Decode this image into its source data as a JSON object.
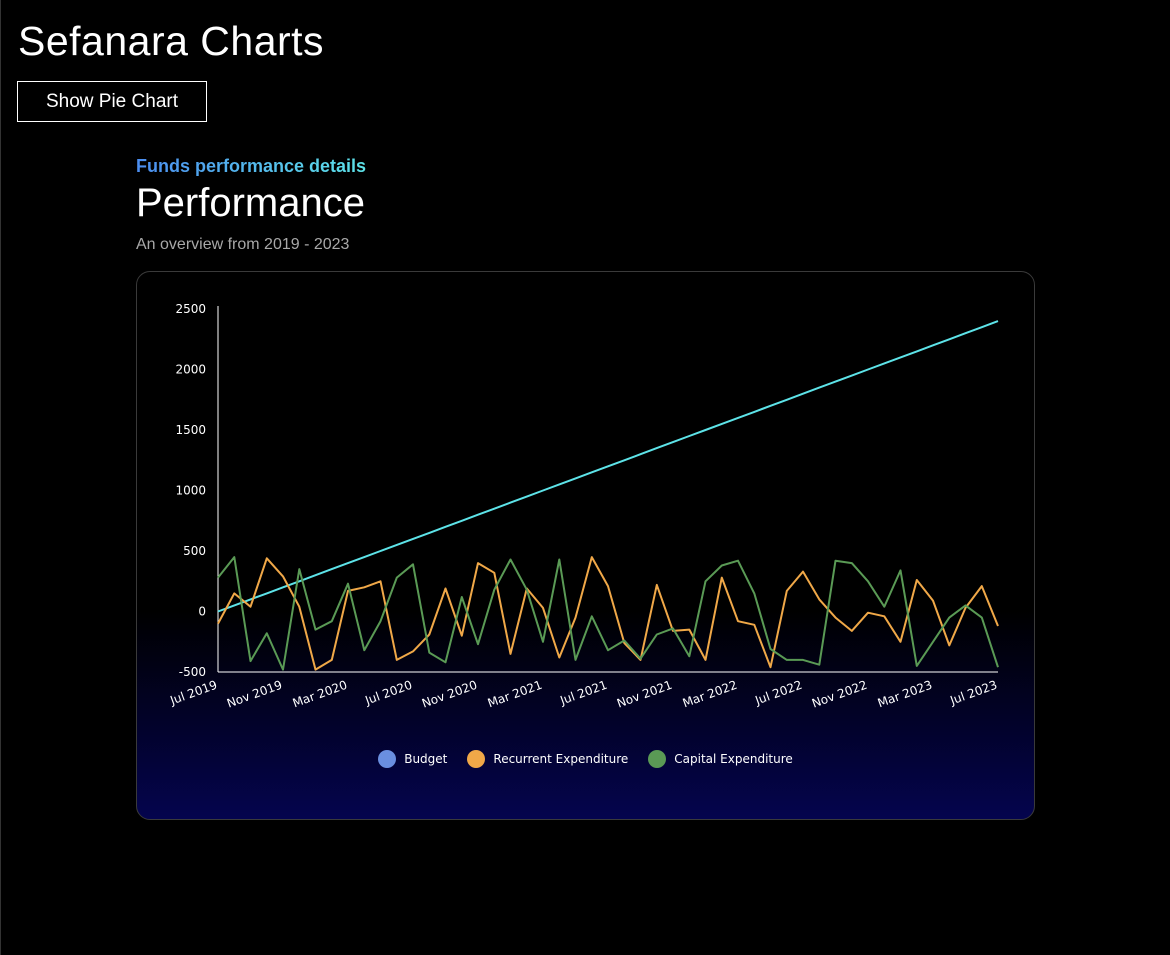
{
  "app": {
    "title": "Sefanara Charts",
    "toggle_label": "Show Pie Chart"
  },
  "section": {
    "eyebrow": "Funds performance details",
    "title": "Performance",
    "subtitle": "An overview from 2019 - 2023"
  },
  "colors": {
    "budget_line": "#5de3e8",
    "budget_legend": "#6a8fe0",
    "recurrent": "#f0a848",
    "capital": "#5a9a55",
    "eyebrow_start": "#4b8df0",
    "eyebrow_end": "#5de3e8"
  },
  "chart_data": {
    "type": "line",
    "title": "",
    "xlabel": "",
    "ylabel": "",
    "ylim": [
      -500,
      2500
    ],
    "yticks": [
      -500,
      0,
      500,
      1000,
      1500,
      2000,
      2500
    ],
    "x_start": "Jul 2019",
    "x_end": "Jul 2023",
    "xtick_labels": [
      "Jul 2019",
      "Nov 2019",
      "Mar 2020",
      "Jul 2020",
      "Nov 2020",
      "Mar 2021",
      "Jul 2021",
      "Nov 2021",
      "Mar 2022",
      "Jul 2022",
      "Nov 2022",
      "Mar 2023",
      "Jul 2023"
    ],
    "grid": false,
    "legend_position": "bottom-center",
    "series": [
      {
        "name": "Budget",
        "values": [
          0,
          50,
          100,
          150,
          200,
          250,
          300,
          350,
          400,
          450,
          500,
          550,
          600,
          650,
          700,
          750,
          800,
          850,
          900,
          950,
          1000,
          1050,
          1100,
          1150,
          1200,
          1250,
          1300,
          1350,
          1400,
          1450,
          1500,
          1550,
          1600,
          1650,
          1700,
          1750,
          1800,
          1850,
          1900,
          1950,
          2000,
          2050,
          2100,
          2150,
          2200,
          2250,
          2300,
          2350,
          2400
        ]
      },
      {
        "name": "Recurrent Expenditure",
        "values": [
          -100,
          150,
          40,
          440,
          290,
          40,
          -480,
          -400,
          170,
          200,
          250,
          -400,
          -330,
          -190,
          190,
          -200,
          400,
          320,
          -350,
          190,
          30,
          -380,
          -50,
          450,
          210,
          -260,
          -400,
          220,
          -160,
          -150,
          -400,
          280,
          -80,
          -110,
          -460,
          170,
          330,
          100,
          -50,
          -160,
          -10,
          -40,
          -250,
          260,
          90,
          -280,
          30,
          210,
          -120
        ]
      },
      {
        "name": "Capital Expenditure",
        "values": [
          280,
          450,
          -410,
          -180,
          -480,
          350,
          -150,
          -80,
          230,
          -320,
          -80,
          280,
          390,
          -340,
          -420,
          120,
          -270,
          180,
          430,
          180,
          -250,
          430,
          -400,
          -40,
          -320,
          -240,
          -390,
          -190,
          -140,
          -370,
          250,
          380,
          420,
          150,
          -310,
          -400,
          -400,
          -440,
          420,
          400,
          250,
          40,
          340,
          -450,
          -250,
          -50,
          50,
          -50,
          -460
        ]
      }
    ]
  }
}
